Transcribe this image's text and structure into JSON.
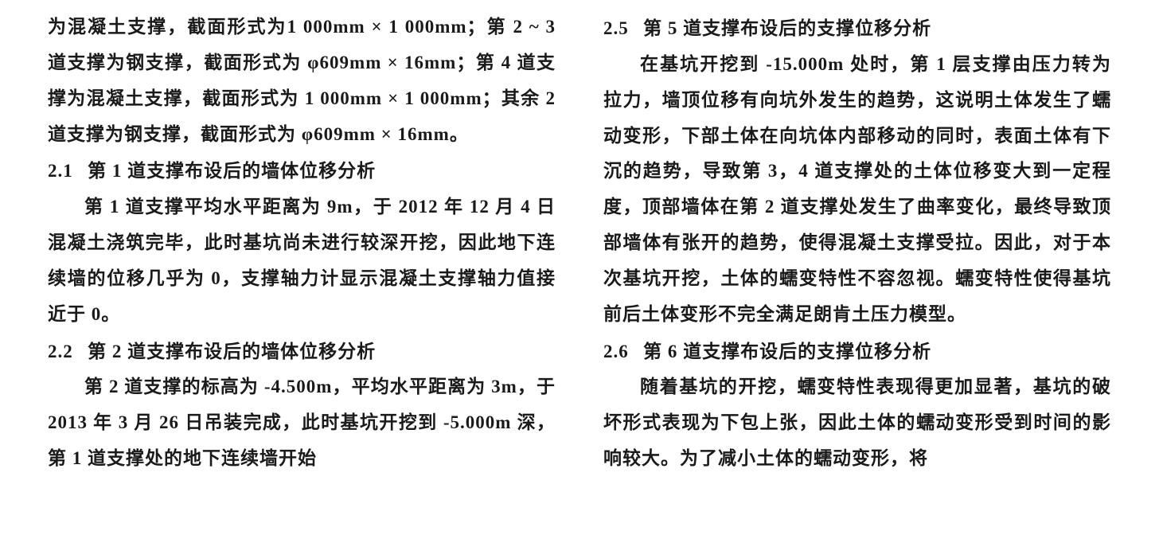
{
  "left_column": {
    "para1": "为混凝土支撑，截面形式为1 000mm × 1 000mm；第 2 ~ 3 道支撑为钢支撑，截面形式为 φ609mm × 16mm；第 4 道支撑为混凝土支撑，截面形式为 1 000mm × 1 000mm；其余 2 道支撑为钢支撑，截面形式为 φ609mm × 16mm。",
    "heading1_num": "2.1",
    "heading1_text": "第 1 道支撑布设后的墙体位移分析",
    "para2": "第 1 道支撑平均水平距离为 9m，于 2012 年 12 月 4 日混凝土浇筑完毕，此时基坑尚未进行较深开挖，因此地下连续墙的位移几乎为 0，支撑轴力计显示混凝土支撑轴力值接近于 0。",
    "heading2_num": "2.2",
    "heading2_text": "第 2 道支撑布设后的墙体位移分析",
    "para3": "第 2 道支撑的标高为 -4.500m，平均水平距离为 3m，于 2013 年 3 月 26 日吊装完成，此时基坑开挖到 -5.000m 深，第 1 道支撑处的地下连续墙开始"
  },
  "right_column": {
    "heading1_num": "2.5",
    "heading1_text": "第 5 道支撑布设后的支撑位移分析",
    "para1": "在基坑开挖到 -15.000m 处时，第 1 层支撑由压力转为拉力，墙顶位移有向坑外发生的趋势，这说明土体发生了蠕动变形，下部土体在向坑体内部移动的同时，表面土体有下沉的趋势，导致第 3，4 道支撑处的土体位移变大到一定程度，顶部墙体在第 2 道支撑处发生了曲率变化，最终导致顶部墙体有张开的趋势，使得混凝土支撑受拉。因此，对于本次基坑开挖，土体的蠕变特性不容忽视。蠕变特性使得基坑前后土体变形不完全满足朗肯土压力模型。",
    "heading2_num": "2.6",
    "heading2_text": "第 6 道支撑布设后的支撑位移分析",
    "para2": "随着基坑的开挖，蠕变特性表现得更加显著，基坑的破坏形式表现为下包上张，因此土体的蠕动变形受到时间的影响较大。为了减小土体的蠕动变形，将"
  }
}
